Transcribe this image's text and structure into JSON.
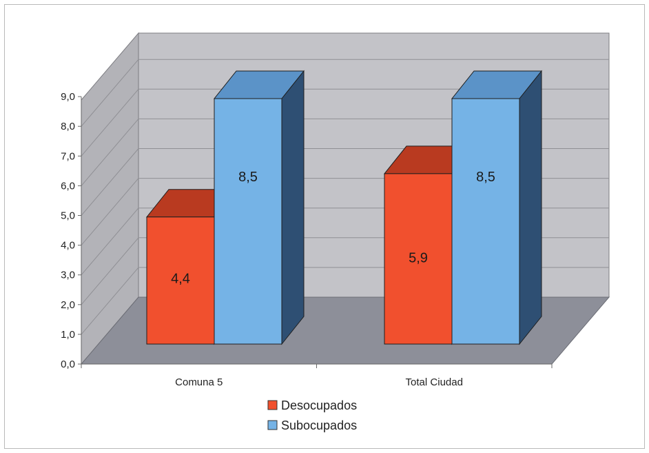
{
  "chart_data": {
    "type": "bar",
    "categories": [
      "Comuna 5",
      "Total Ciudad"
    ],
    "series": [
      {
        "name": "Desocupados",
        "values": [
          4.4,
          5.9
        ],
        "value_labels": [
          "4,4",
          "5,9"
        ]
      },
      {
        "name": "Subocupados",
        "values": [
          8.5,
          8.5
        ],
        "value_labels": [
          "8,5",
          "8,5"
        ]
      }
    ],
    "ylim": [
      0,
      9
    ],
    "yticks": [
      "0,0",
      "1,0",
      "2,0",
      "3,0",
      "4,0",
      "5,0",
      "6,0",
      "7,0",
      "8,0",
      "9,0"
    ],
    "grid": true,
    "legend": "bottom-center",
    "three_d": true,
    "colors": {
      "Desocupados": {
        "front": "#f1502e",
        "top": "#b93a20",
        "side": "#8e2814"
      },
      "Subocupados": {
        "front": "#75b3e6",
        "top": "#5b93c8",
        "side": "#2e4f73"
      },
      "wall": "#c3c3c8",
      "side_wall": "#b3b3b8",
      "floor": "#8d8f99",
      "gridline": "#8f8f94"
    }
  }
}
